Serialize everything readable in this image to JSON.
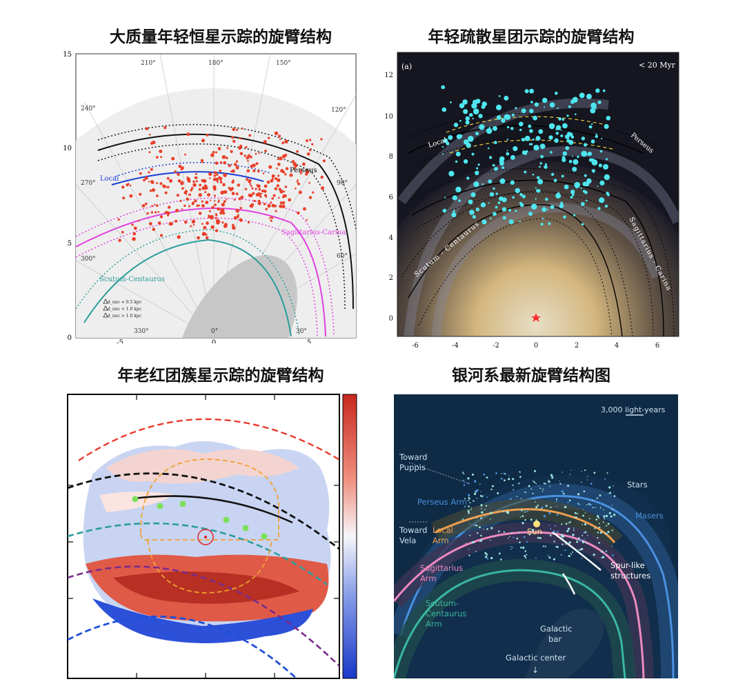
{
  "titles": {
    "tl": "大质量年轻恒星示踪的旋臂结构",
    "tr": "年轻疏散星团示踪的旋臂结构",
    "bl": "年老红团簇星示踪的旋臂结构",
    "br": "银河系最新旋臂结构图"
  },
  "tl": {
    "y_ticks": [
      "15",
      "10",
      "5",
      "0"
    ],
    "x_ticks": [
      "-5",
      "0",
      "5"
    ],
    "longitudes": [
      "210°",
      "180°",
      "150°",
      "240°",
      "120°",
      "270°",
      "90°",
      "300°",
      "60°",
      "330°",
      "0°",
      "30°"
    ],
    "arm_labels": {
      "perseus": "Perseus",
      "local": "Local",
      "sagittarius": "Sagittarius-Carina",
      "scutum": "Scutum-Centaurus"
    },
    "legend": [
      "d_unc < 0.5 kpc",
      "d_unc < 1.0 kpc",
      "d_unc > 1.0 kpc"
    ],
    "colors": {
      "perseus": "#000000",
      "local": "#1a3fd6",
      "sagittarius": "#e040e0",
      "scutum": "#2a9d9a",
      "stars": "#e8402a"
    }
  },
  "tr": {
    "panel_tag": "(a)",
    "age_label": "< 20 Myr",
    "y_ticks": [
      "12",
      "10",
      "8",
      "6",
      "4",
      "2",
      "0"
    ],
    "x_ticks": [
      "-6",
      "-4",
      "-2",
      "0",
      "2",
      "4",
      "6"
    ],
    "arm_labels": {
      "local": "Local",
      "perseus": "Perseus",
      "sagittarius": "Sagittarius - Carina",
      "scutum": "Scutum - Centaurus"
    },
    "colors": {
      "clusters": "#4fe6f0",
      "sun": "#ff3030"
    }
  },
  "bl": {
    "colors": {
      "outer": "#e83a2a",
      "black": "#111111",
      "teal": "#2a9d9a",
      "purple": "#7a2a8a",
      "blue": "#1f4fd8",
      "orange": "#f0a030",
      "green": "#7de05a"
    }
  },
  "br": {
    "scale_label": "3,000 light-years",
    "toward_puppis": [
      "Toward",
      "Puppis"
    ],
    "toward_vela": [
      "Toward",
      "Vela"
    ],
    "stars": "Stars",
    "masers": "Masers",
    "perseus": "Perseus Arm",
    "local": [
      "Local",
      "Arm"
    ],
    "sun": "Sun",
    "spur": [
      "Spur-like",
      "structures"
    ],
    "sagittarius": [
      "Sagittarius",
      "Arm"
    ],
    "scutum": [
      "Scutum-",
      "Centaurus",
      "Arm"
    ],
    "bar": [
      "Galactic",
      "bar"
    ],
    "center": "Galactic center",
    "colors": {
      "bg": "#0e2a45",
      "perseus": "#4a90e0",
      "local": "#f0a050",
      "sagittarius": "#f08ac0",
      "scutum": "#3ab8a0",
      "text": "#cfe0ee"
    }
  }
}
